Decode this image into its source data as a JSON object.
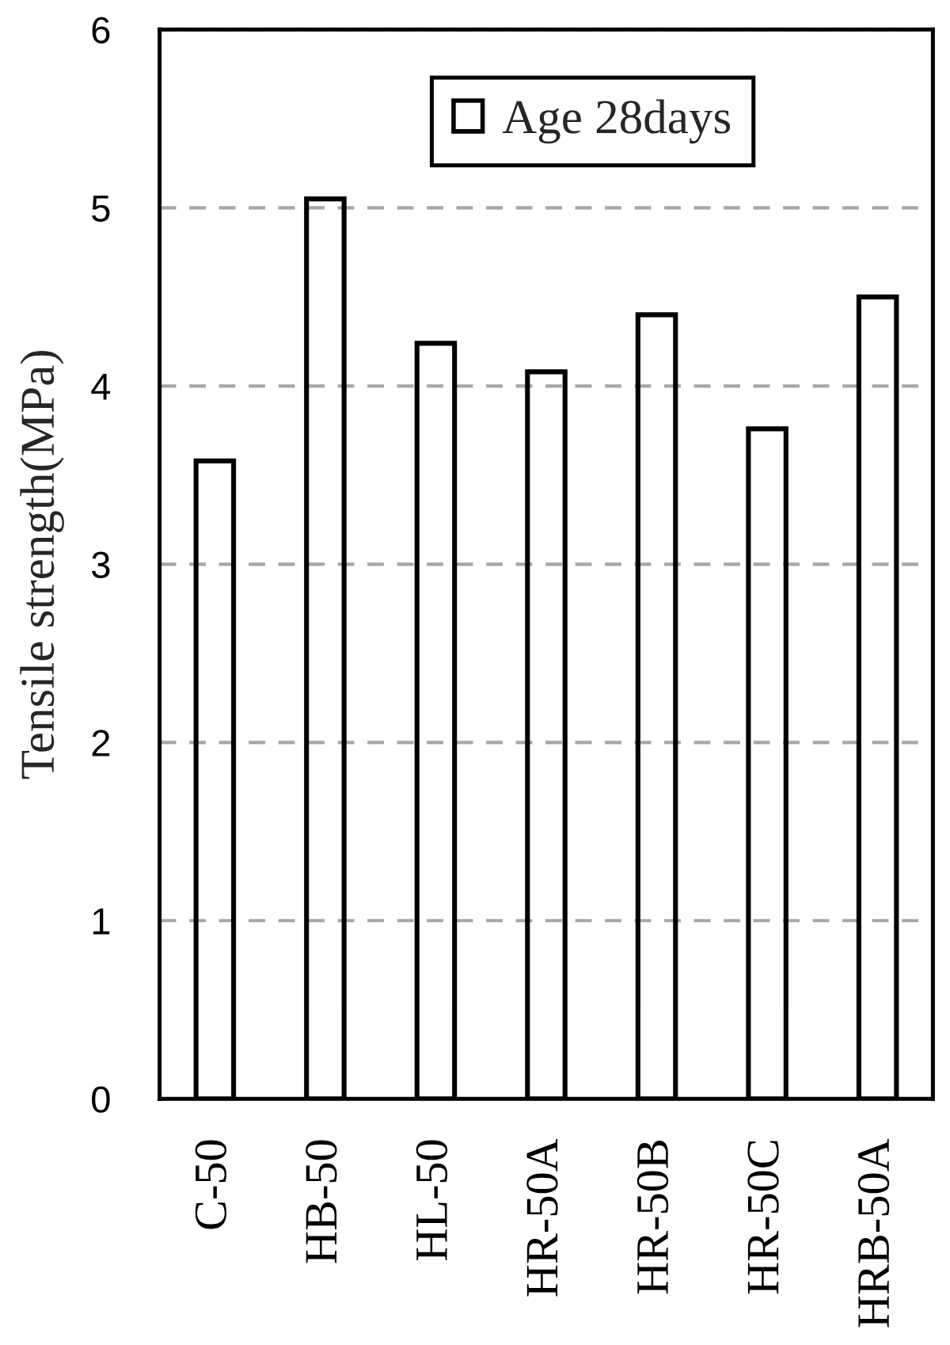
{
  "chart_data": {
    "type": "bar",
    "ylabel": "Tensile strength(MPa)",
    "categories": [
      "C-50",
      "HB-50",
      "HL-50",
      "HR-50A",
      "HR-50B",
      "HR-50C",
      "HRB-50A"
    ],
    "series": [
      {
        "name": "Age 28days",
        "color": "#000000",
        "values": [
          3.58,
          5.05,
          4.24,
          4.08,
          4.4,
          3.76,
          4.5
        ]
      }
    ],
    "ylim": [
      0,
      6
    ],
    "yticks": [
      0,
      1,
      2,
      3,
      4,
      5,
      6
    ],
    "grid": "y",
    "legend": "top"
  }
}
